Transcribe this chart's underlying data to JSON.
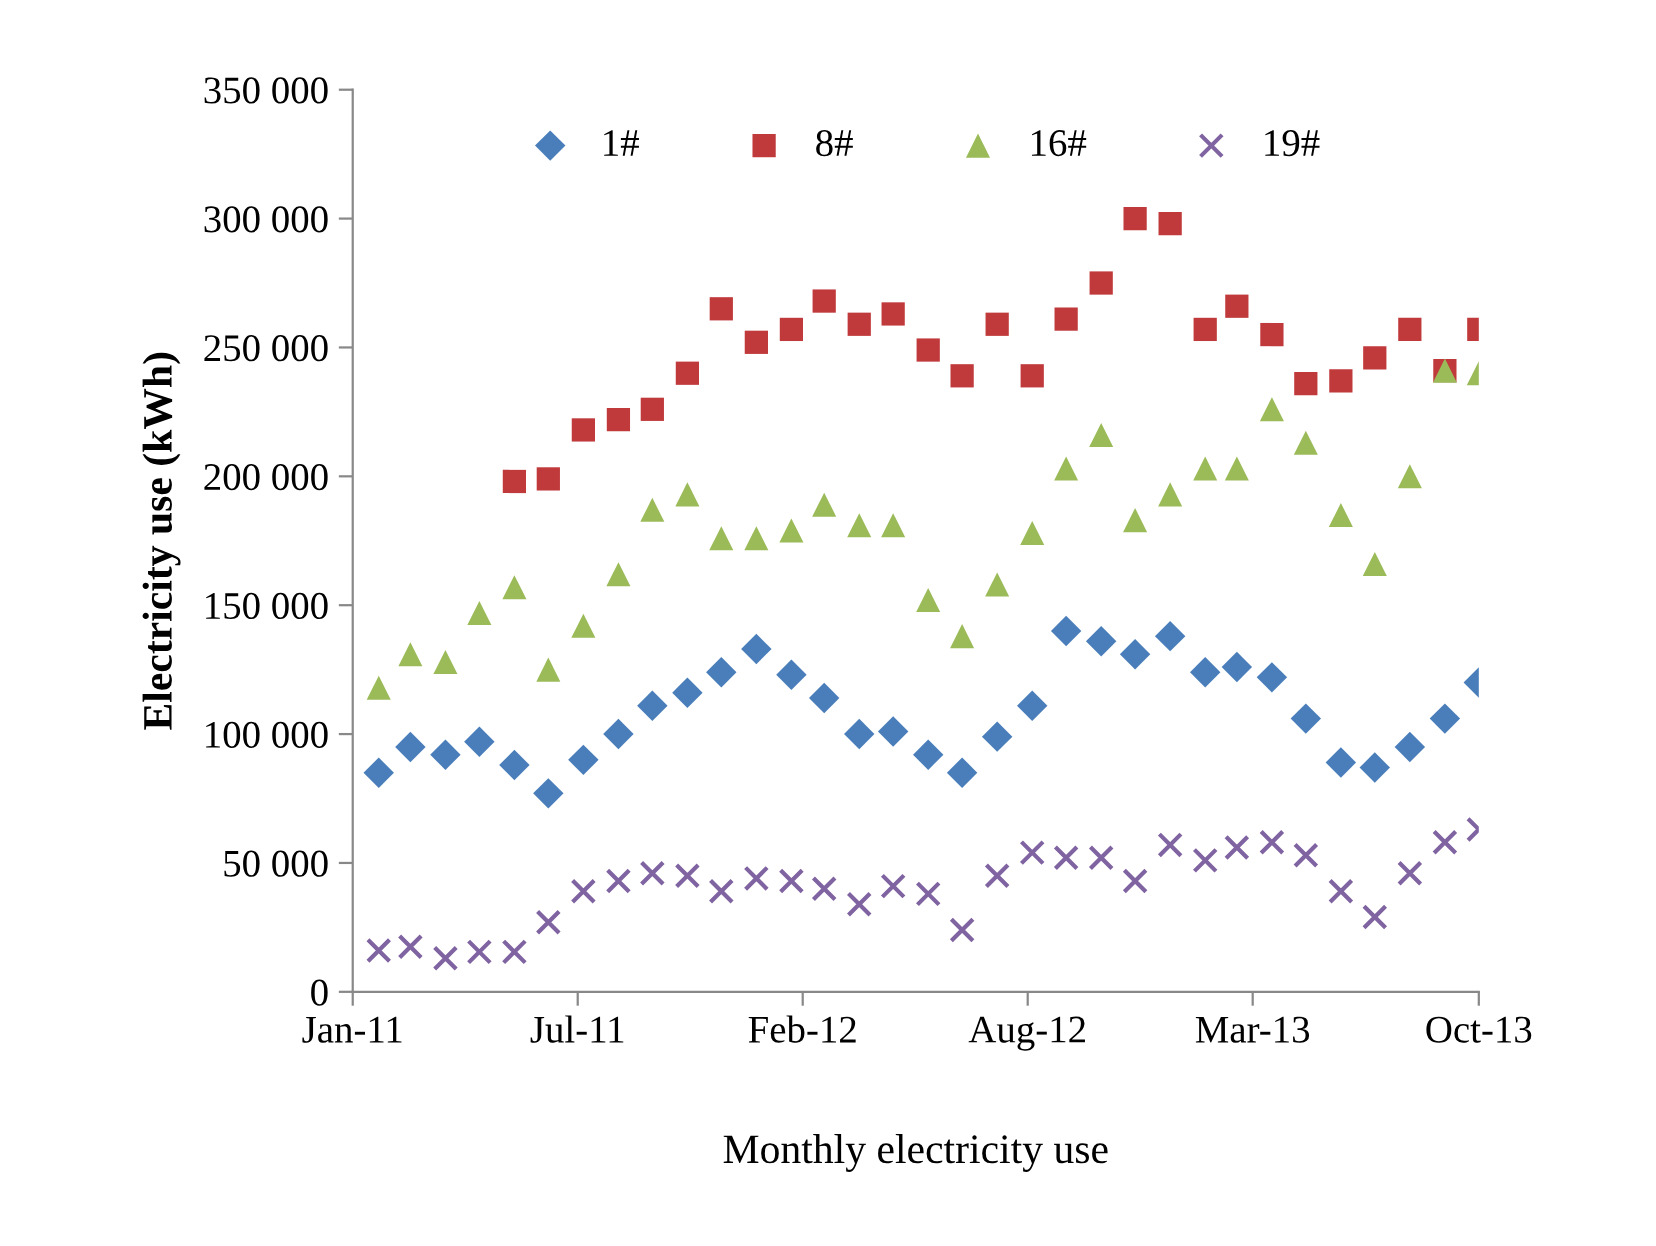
{
  "chart_data": {
    "type": "scatter",
    "xlabel": "Monthly electricity use",
    "ylabel": "Electricity use (kWh)",
    "x": [
      "2011-02",
      "2011-03",
      "2011-04",
      "2011-05",
      "2011-06",
      "2011-07",
      "2011-08",
      "2011-09",
      "2011-10",
      "2011-11",
      "2011-12",
      "2012-01",
      "2012-02",
      "2012-03",
      "2012-04",
      "2012-05",
      "2012-06",
      "2012-07",
      "2012-08",
      "2012-09",
      "2012-10",
      "2012-11",
      "2012-12",
      "2013-01",
      "2013-02",
      "2013-03",
      "2013-04",
      "2013-05",
      "2013-06",
      "2013-07",
      "2013-08",
      "2013-09",
      "2013-10"
    ],
    "series": [
      {
        "name": "1#",
        "color": "#4a7ebb",
        "marker": "diamond",
        "values": [
          85000,
          95000,
          92000,
          97000,
          88000,
          77000,
          90000,
          100000,
          111000,
          116000,
          124000,
          133000,
          123000,
          114000,
          100000,
          101000,
          92000,
          85000,
          99000,
          111000,
          140000,
          136000,
          131000,
          138000,
          124000,
          126000,
          122000,
          106000,
          89000,
          87000,
          95000,
          106000,
          120000
        ]
      },
      {
        "name": "8#",
        "color": "#c0393b",
        "marker": "square",
        "values": [
          null,
          null,
          null,
          null,
          198000,
          199000,
          218000,
          222000,
          226000,
          240000,
          265000,
          252000,
          257000,
          268000,
          259000,
          263000,
          249000,
          239000,
          259000,
          239000,
          261000,
          275000,
          300000,
          298000,
          257000,
          266000,
          255000,
          236000,
          237000,
          246000,
          257000,
          241000,
          257000
        ]
      },
      {
        "name": "16#",
        "color": "#9bbb59",
        "marker": "triangle",
        "values": [
          118000,
          131000,
          128000,
          147000,
          157000,
          125000,
          142000,
          162000,
          187000,
          193000,
          176000,
          176000,
          179000,
          189000,
          181000,
          181000,
          152000,
          138000,
          158000,
          178000,
          203000,
          216000,
          183000,
          193000,
          203000,
          203000,
          226000,
          213000,
          185000,
          166000,
          200000,
          241000,
          240000
        ]
      },
      {
        "name": "19#",
        "color": "#8064a2",
        "marker": "cross",
        "values": [
          16000,
          17500,
          13000,
          15500,
          15500,
          27000,
          39000,
          43000,
          46000,
          45000,
          39000,
          44000,
          43000,
          40000,
          34000,
          41000,
          38000,
          24000,
          45000,
          54000,
          52000,
          52000,
          43000,
          57000,
          51000,
          56000,
          58000,
          53000,
          39000,
          29000,
          46000,
          58000,
          63000
        ]
      }
    ],
    "xlim": [
      "2011-01-09",
      "2013-10-01"
    ],
    "xticks": [
      {
        "value": "2011-01-09",
        "label": "Jan-11"
      },
      {
        "value": "2011-07-27",
        "label": "Jul-11"
      },
      {
        "value": "2012-02-11",
        "label": "Feb-12"
      },
      {
        "value": "2012-08-28",
        "label": "Aug-12"
      },
      {
        "value": "2013-03-15",
        "label": "Mar-13"
      },
      {
        "value": "2013-10-01",
        "label": "Oct-13"
      }
    ],
    "ylim": [
      0,
      350000
    ],
    "yticks": [
      0,
      {
        "value": 50000,
        "label": "50 000"
      },
      {
        "value": 100000,
        "label": "100 000"
      },
      {
        "value": 150000,
        "label": "150 000"
      },
      {
        "value": 200000,
        "label": "200 000"
      },
      {
        "value": 250000,
        "label": "250 000"
      },
      {
        "value": 300000,
        "label": "300 000"
      },
      {
        "value": 350000,
        "label": "350 000"
      }
    ],
    "grid": false,
    "legend": "top"
  }
}
